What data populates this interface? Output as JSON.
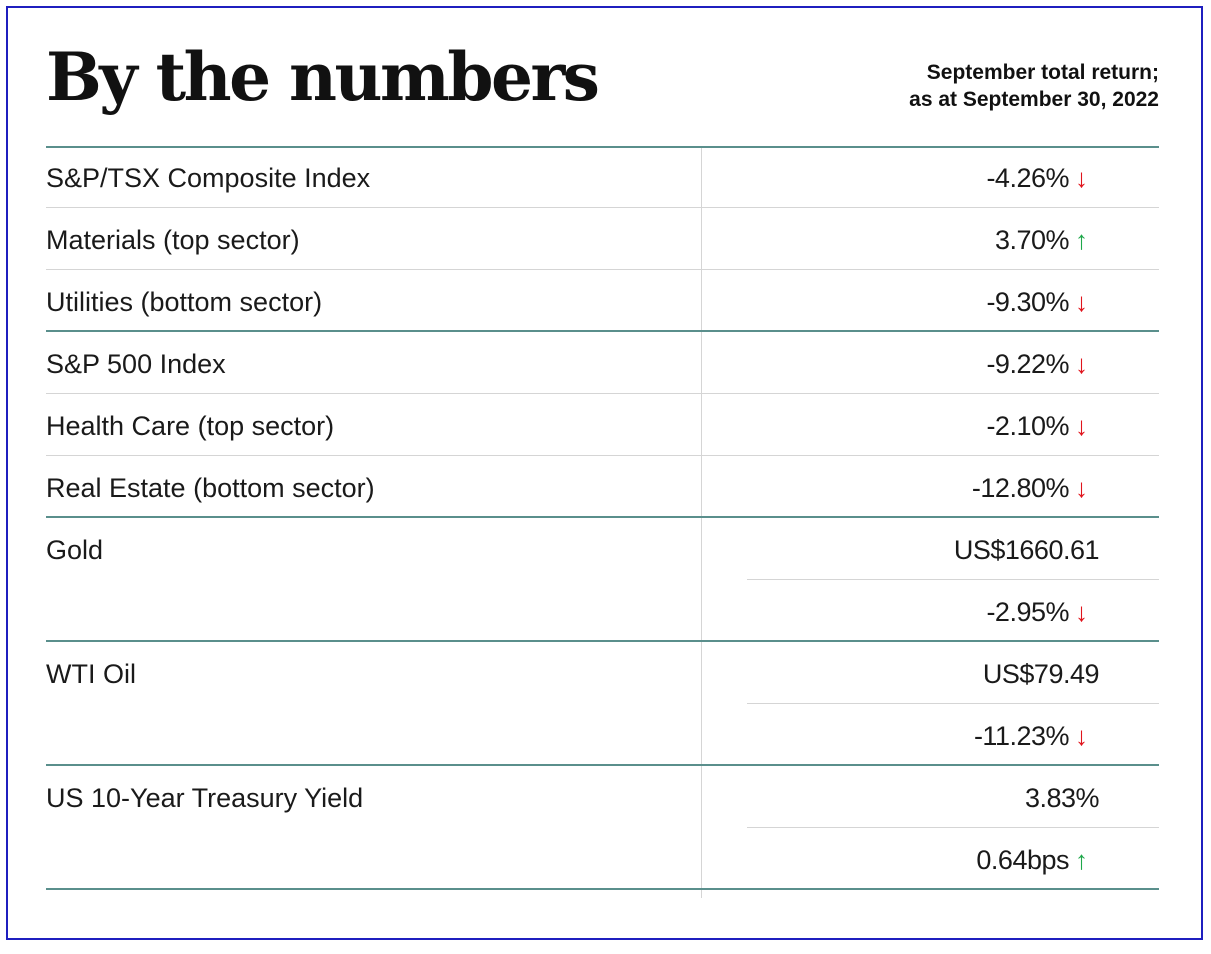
{
  "title": "By the numbers",
  "subtitle_line1": "September total return;",
  "subtitle_line2": "as at September 30, 2022",
  "colors": {
    "down": "#e0141c",
    "up": "#1ea84a",
    "rule": "#5a8f8c",
    "frame": "#1f1fbf"
  },
  "rows": [
    {
      "label": "S&P/TSX Composite Index",
      "value": "-4.26%",
      "arrow": "down",
      "line": "thin"
    },
    {
      "label": "Materials (top sector)",
      "value": "3.70%",
      "arrow": "up",
      "line": "thin"
    },
    {
      "label": "Utilities (bottom sector)",
      "value": "-9.30%",
      "arrow": "down",
      "line": "thick"
    },
    {
      "label": "S&P 500 Index",
      "value": "-9.22%",
      "arrow": "down",
      "line": "thin"
    },
    {
      "label": "Health Care (top sector)",
      "value": "-2.10%",
      "arrow": "down",
      "line": "thin"
    },
    {
      "label": "Real Estate (bottom sector)",
      "value": "-12.80%",
      "arrow": "down",
      "line": "thick"
    },
    {
      "label": "Gold",
      "value": "US$1660.61",
      "arrow": "none",
      "line": "partial"
    },
    {
      "label": "",
      "value": "-2.95%",
      "arrow": "down",
      "line": "thick"
    },
    {
      "label": "WTI Oil",
      "value": "US$79.49",
      "arrow": "none",
      "line": "partial"
    },
    {
      "label": "",
      "value": "-11.23%",
      "arrow": "down",
      "line": "thick"
    },
    {
      "label": "US 10-Year Treasury Yield",
      "value": "3.83%",
      "arrow": "none",
      "line": "partial"
    },
    {
      "label": "",
      "value": "0.64bps",
      "arrow": "up",
      "line": "thick"
    }
  ]
}
